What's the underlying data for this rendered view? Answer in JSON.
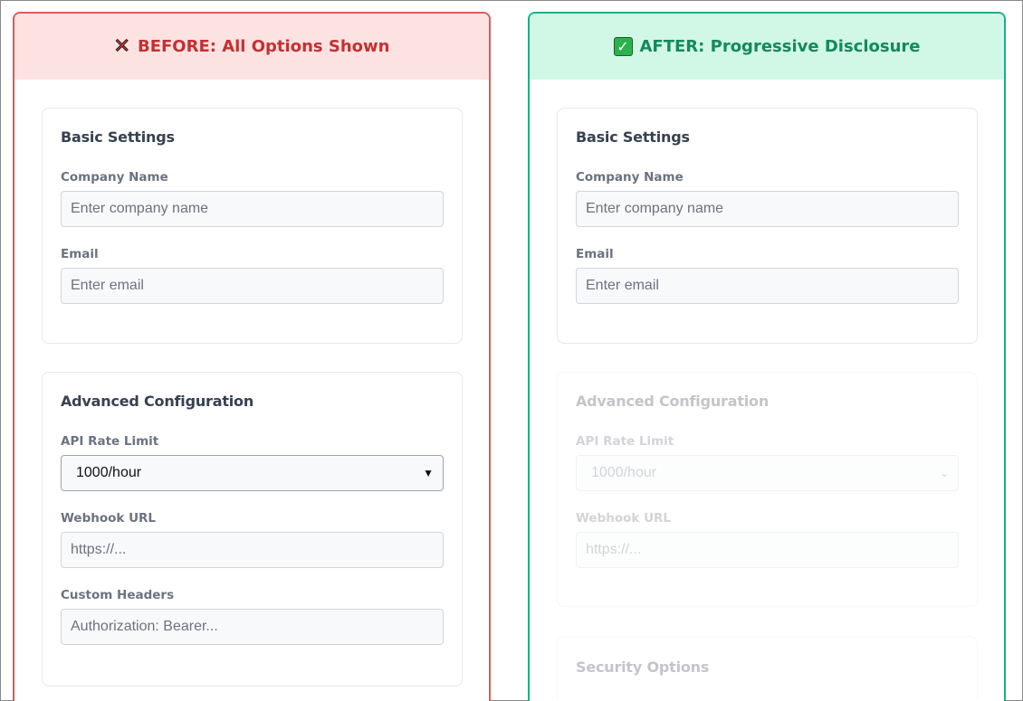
{
  "before": {
    "title": "BEFORE: All Options Shown",
    "icon": "cross-mark-icon",
    "accent": "#c53030",
    "basic": {
      "heading": "Basic Settings",
      "company_label": "Company Name",
      "company_placeholder": "Enter company name",
      "email_label": "Email",
      "email_placeholder": "Enter email"
    },
    "advanced": {
      "heading": "Advanced Configuration",
      "rate_label": "API Rate Limit",
      "rate_value": "1000/hour",
      "webhook_label": "Webhook URL",
      "webhook_placeholder": "https://...",
      "headers_label": "Custom Headers",
      "headers_placeholder": "Authorization: Bearer..."
    }
  },
  "after": {
    "title": "AFTER: Progressive Disclosure",
    "icon": "check-mark-icon",
    "accent": "#138a5c",
    "basic": {
      "heading": "Basic Settings",
      "company_label": "Company Name",
      "company_placeholder": "Enter company name",
      "email_label": "Email",
      "email_placeholder": "Enter email"
    },
    "advanced": {
      "heading": "Advanced Configuration",
      "rate_label": "API Rate Limit",
      "rate_value": "1000/hour",
      "webhook_label": "Webhook URL",
      "webhook_placeholder": "https://..."
    },
    "security": {
      "heading": "Security Options"
    }
  }
}
